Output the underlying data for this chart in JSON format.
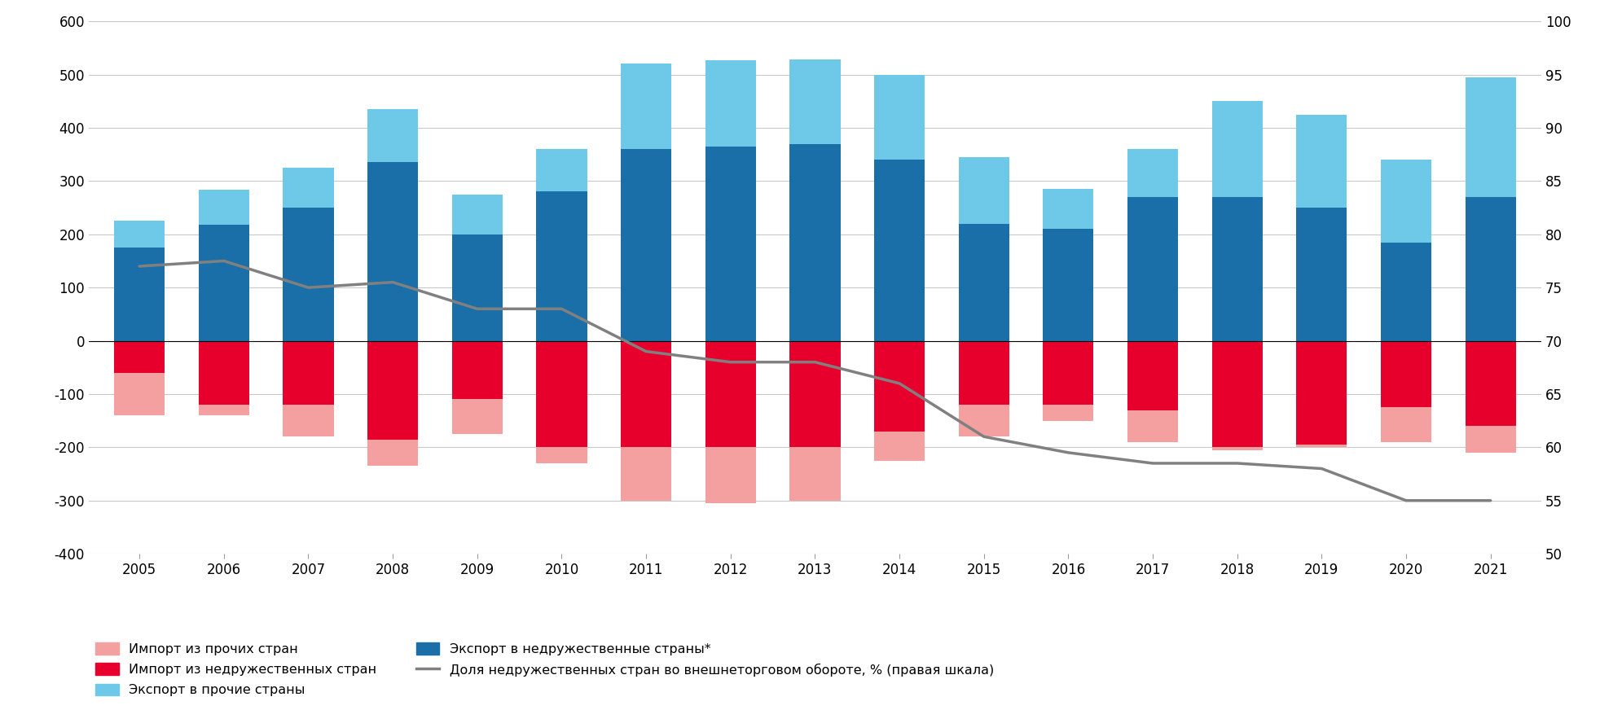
{
  "years": [
    2005,
    2006,
    2007,
    2008,
    2009,
    2010,
    2011,
    2012,
    2013,
    2014,
    2015,
    2016,
    2017,
    2018,
    2019,
    2020,
    2021
  ],
  "export_unfriendly": [
    175,
    218,
    250,
    335,
    200,
    280,
    360,
    365,
    370,
    340,
    220,
    210,
    270,
    270,
    250,
    185,
    270
  ],
  "export_other": [
    50,
    65,
    75,
    100,
    75,
    80,
    160,
    162,
    158,
    160,
    125,
    75,
    90,
    180,
    175,
    155,
    225
  ],
  "import_unfriendly": [
    -60,
    -120,
    -120,
    -185,
    -110,
    -200,
    -200,
    -200,
    -200,
    -170,
    -120,
    -120,
    -130,
    -200,
    -195,
    -125,
    -160
  ],
  "import_other": [
    -80,
    -20,
    -60,
    -50,
    -65,
    -30,
    -100,
    -105,
    -100,
    -55,
    -60,
    -30,
    -60,
    -5,
    -5,
    -65,
    -50
  ],
  "line_values": [
    77,
    77.5,
    75,
    75.5,
    73,
    73,
    69,
    68,
    68,
    66,
    61,
    59.5,
    58.5,
    58.5,
    58,
    55,
    55
  ],
  "color_export_unfriendly": "#1a6fa8",
  "color_export_other": "#6ec8e8",
  "color_import_unfriendly": "#e8002d",
  "color_import_other": "#f4a0a0",
  "color_line": "#808080",
  "ylim_left": [
    -400,
    600
  ],
  "ylim_right": [
    50,
    100
  ],
  "yticks_left": [
    -400,
    -300,
    -200,
    -100,
    0,
    100,
    200,
    300,
    400,
    500,
    600
  ],
  "yticks_right": [
    50,
    55,
    60,
    65,
    70,
    75,
    80,
    85,
    90,
    95,
    100
  ],
  "legend_labels": [
    "Импорт из прочих стран",
    "Импорт из недружественных стран",
    "Экспорт в прочие страны",
    "Экспорт в недружественные страны*",
    "Доля недружественных стран во внешнеторговом обороте, % (правая шкала)"
  ],
  "bar_width": 0.6,
  "background_color": "#ffffff",
  "grid_color": "#c8c8c8"
}
